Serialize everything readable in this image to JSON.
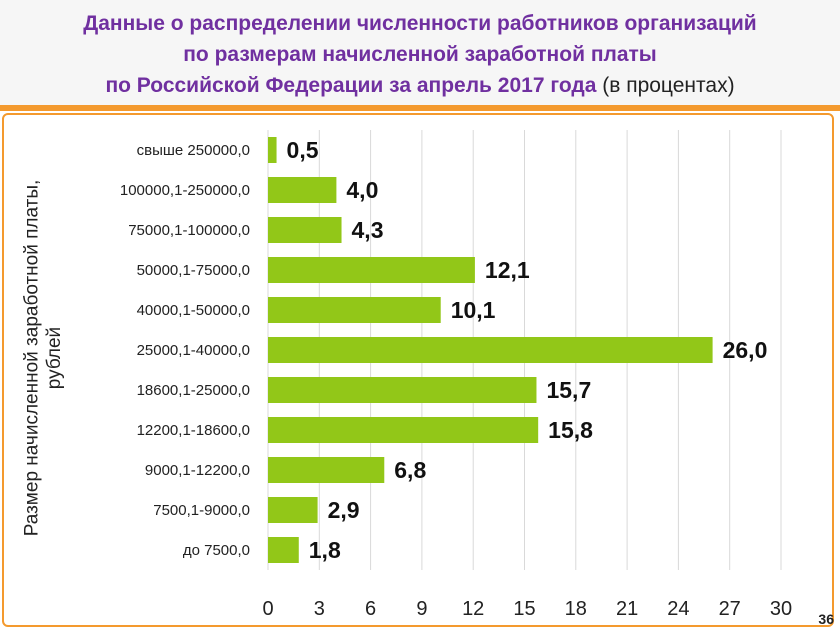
{
  "title": {
    "line1": "Данные о распределении численности работников организаций",
    "line2": "по размерам начисленной заработной платы",
    "line3": "по Российской Федерации за апрель 2017 года",
    "unit": "(в процентах)"
  },
  "page_number": "36",
  "colors": {
    "bar": "#92c718",
    "title": "#7030a0",
    "accent": "#f49a2e",
    "grid": "#d9d9d9"
  },
  "chart_data": {
    "type": "bar",
    "orientation": "horizontal",
    "ylabel": "Размер начисленной заработной платы, рублей",
    "xlabel": "",
    "xlim": [
      0,
      30
    ],
    "xticks": [
      0,
      3,
      6,
      9,
      12,
      15,
      18,
      21,
      24,
      27,
      30
    ],
    "grid": "vertical",
    "categories": [
      "свыше 250000,0",
      "100000,1-250000,0",
      "75000,1-100000,0",
      "50000,1-75000,0",
      "40000,1-50000,0",
      "25000,1-40000,0",
      "18600,1-25000,0",
      "12200,1-18600,0",
      "9000,1-12200,0",
      "7500,1-9000,0",
      "до 7500,0"
    ],
    "values": [
      0.5,
      4.0,
      4.3,
      12.1,
      10.1,
      26.0,
      15.7,
      15.8,
      6.8,
      2.9,
      1.8
    ],
    "value_labels": [
      "0,5",
      "4,0",
      "4,3",
      "12,1",
      "10,1",
      "26,0",
      "15,7",
      "15,8",
      "6,8",
      "2,9",
      "1,8"
    ]
  }
}
